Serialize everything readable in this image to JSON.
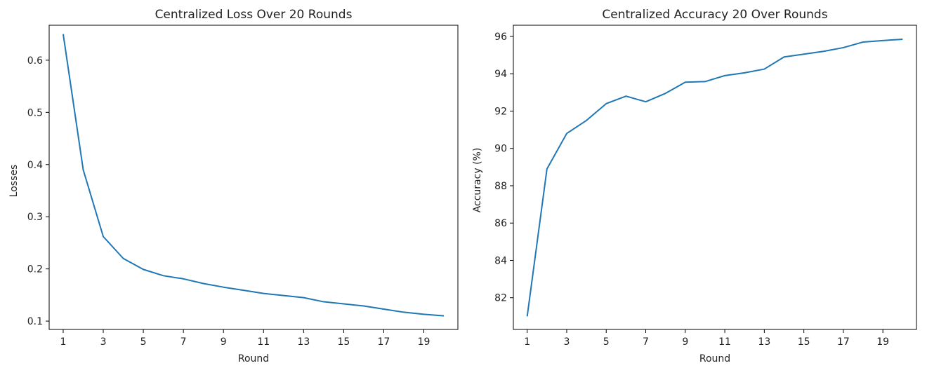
{
  "figure": {
    "background": "#ffffff"
  },
  "chart_data": [
    {
      "type": "line",
      "title": "Centralized Loss Over 20 Rounds",
      "xlabel": "Round",
      "ylabel": "Losses",
      "xlim": [
        0.3,
        20.7
      ],
      "ylim": [
        0.084,
        0.667
      ],
      "xticks": [
        1,
        3,
        5,
        7,
        9,
        11,
        13,
        15,
        17,
        19
      ],
      "yticks": [
        0.1,
        0.2,
        0.3,
        0.4,
        0.5,
        0.6
      ],
      "yticklabels": [
        "0.1",
        "0.2",
        "0.3",
        "0.4",
        "0.5",
        "0.6"
      ],
      "grid": false,
      "series": [
        {
          "color": "#1f77b4",
          "x": [
            1,
            2,
            3,
            4,
            5,
            6,
            7,
            8,
            9,
            10,
            11,
            12,
            13,
            14,
            15,
            16,
            17,
            18,
            19,
            20
          ],
          "y": [
            0.65,
            0.39,
            0.262,
            0.22,
            0.199,
            0.187,
            0.181,
            0.172,
            0.165,
            0.159,
            0.153,
            0.149,
            0.145,
            0.137,
            0.133,
            0.129,
            0.123,
            0.117,
            0.113,
            0.11
          ]
        }
      ]
    },
    {
      "type": "line",
      "title": "Centralized Accuracy 20 Over Rounds",
      "xlabel": "Round",
      "ylabel": "Accuracy (%)",
      "xlim": [
        0.3,
        20.7
      ],
      "ylim": [
        80.3,
        96.6
      ],
      "xticks": [
        1,
        3,
        5,
        7,
        9,
        11,
        13,
        15,
        17,
        19
      ],
      "yticks": [
        82,
        84,
        86,
        88,
        90,
        92,
        94,
        96
      ],
      "yticklabels": [
        "82",
        "84",
        "86",
        "88",
        "90",
        "92",
        "94",
        "96"
      ],
      "grid": false,
      "series": [
        {
          "color": "#1f77b4",
          "x": [
            1,
            2,
            3,
            4,
            5,
            6,
            7,
            8,
            9,
            10,
            11,
            12,
            13,
            14,
            15,
            16,
            17,
            18,
            19,
            20
          ],
          "y": [
            81.0,
            88.9,
            90.8,
            91.5,
            92.4,
            92.8,
            92.5,
            92.95,
            93.55,
            93.58,
            93.9,
            94.05,
            94.25,
            94.9,
            95.05,
            95.2,
            95.4,
            95.7,
            95.78,
            95.85
          ]
        }
      ]
    }
  ]
}
